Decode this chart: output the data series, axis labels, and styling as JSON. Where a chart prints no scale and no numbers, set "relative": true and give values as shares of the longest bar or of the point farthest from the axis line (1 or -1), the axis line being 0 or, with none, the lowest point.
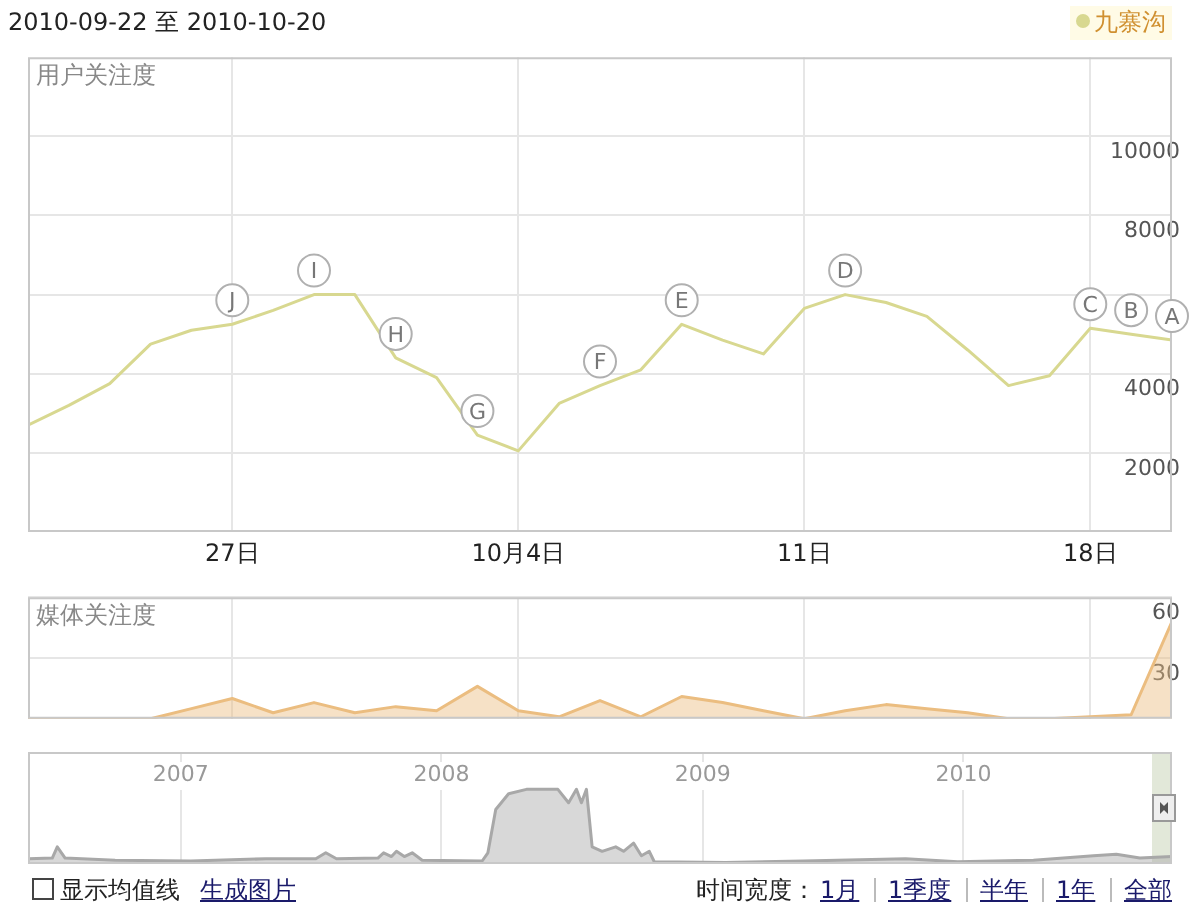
{
  "chart_data": [
    {
      "type": "line",
      "title": "2010-09-22 至 2010-10-20",
      "ylabel": "用户关注度",
      "legend": "top right",
      "marker": "none",
      "grid": true,
      "x": [
        "2010-09-22",
        "2010-09-23",
        "2010-09-24",
        "2010-09-25",
        "2010-09-26",
        "2010-09-27",
        "2010-09-28",
        "2010-09-29",
        "2010-09-30",
        "2010-10-01",
        "2010-10-02",
        "2010-10-03",
        "2010-10-04",
        "2010-10-05",
        "2010-10-06",
        "2010-10-07",
        "2010-10-08",
        "2010-10-09",
        "2010-10-10",
        "2010-10-11",
        "2010-10-12",
        "2010-10-13",
        "2010-10-14",
        "2010-10-15",
        "2010-10-16",
        "2010-10-17",
        "2010-10-18",
        "2010-10-19",
        "2010-10-20"
      ],
      "series": [
        {
          "name": "九寨沟",
          "color": "#d8d890",
          "values": [
            2700,
            3200,
            3750,
            4750,
            5100,
            5250,
            5600,
            6000,
            6000,
            4400,
            3900,
            2450,
            2050,
            3250,
            3700,
            4100,
            5250,
            4850,
            4500,
            5650,
            6000,
            5800,
            5450,
            4600,
            3700,
            3950,
            5150,
            5000,
            4850
          ]
        }
      ],
      "xlim": [
        "2010-09-22",
        "2010-10-20"
      ],
      "xticks": [
        {
          "value": "2010-09-27",
          "label": "27日"
        },
        {
          "value": "2010-10-04",
          "label": "10月4日"
        },
        {
          "value": "2010-10-11",
          "label": "11日"
        },
        {
          "value": "2010-10-18",
          "label": "18日"
        }
      ],
      "ylim": [
        0,
        12000
      ],
      "yticks": [
        2000,
        4000,
        {
          "value": 6000,
          "label": null
        },
        8000,
        10000
      ],
      "annotations": [
        {
          "text": "J",
          "x": "2010-09-27",
          "y": 5250
        },
        {
          "text": "I",
          "x": "2010-09-29",
          "y": 6000
        },
        {
          "text": "H",
          "x": "2010-10-01",
          "y": 4400
        },
        {
          "text": "G",
          "x": "2010-10-03",
          "y": 2450
        },
        {
          "text": "F",
          "x": "2010-10-06",
          "y": 3700
        },
        {
          "text": "E",
          "x": "2010-10-08",
          "y": 5250
        },
        {
          "text": "D",
          "x": "2010-10-12",
          "y": 6000
        },
        {
          "text": "C",
          "x": "2010-10-18",
          "y": 5150
        },
        {
          "text": "B",
          "x": "2010-10-19",
          "y": 5000
        },
        {
          "text": "A",
          "x": "2010-10-20",
          "y": 4850
        }
      ]
    },
    {
      "type": "area",
      "ylabel": "媒体关注度",
      "marker": "none",
      "grid": true,
      "tick_labels": "y",
      "x": [
        "2010-09-22",
        "2010-09-23",
        "2010-09-24",
        "2010-09-25",
        "2010-09-26",
        "2010-09-27",
        "2010-09-28",
        "2010-09-29",
        "2010-09-30",
        "2010-10-01",
        "2010-10-02",
        "2010-10-03",
        "2010-10-04",
        "2010-10-05",
        "2010-10-06",
        "2010-10-07",
        "2010-10-08",
        "2010-10-09",
        "2010-10-10",
        "2010-10-11",
        "2010-10-12",
        "2010-10-13",
        "2010-10-14",
        "2010-10-15",
        "2010-10-16",
        "2010-10-17",
        "2010-10-18",
        "2010-10-19",
        "2010-10-20"
      ],
      "series": [
        {
          "color": "#ebbd80",
          "values": [
            0,
            0,
            0,
            0,
            5,
            10,
            3,
            8,
            3,
            6,
            4,
            16,
            4,
            1,
            9,
            1,
            11,
            8,
            4,
            0,
            4,
            7,
            5,
            3,
            0,
            0,
            1,
            2,
            48
          ]
        }
      ],
      "xlim": [
        "2010-09-22",
        "2010-10-20"
      ],
      "xticks": [
        {
          "value": "2010-09-27",
          "label": null
        },
        {
          "value": "2010-10-04",
          "label": null
        },
        {
          "value": "2010-10-11",
          "label": null
        },
        {
          "value": "2010-10-18",
          "label": null
        }
      ],
      "ylim": [
        0,
        60
      ],
      "yticks": [
        30,
        60
      ]
    },
    {
      "type": "area",
      "relative": true,
      "marker": "none",
      "grid": "x",
      "tick_labels": "x",
      "x": [
        "2006-06-02",
        "2006-07-05",
        "2006-07-12",
        "2006-07-23",
        "2006-10-01",
        "2007-01-15",
        "2007-04-30",
        "2007-07-09",
        "2007-07-23",
        "2007-08-07",
        "2007-10-04",
        "2007-10-12",
        "2007-10-23",
        "2007-10-30",
        "2007-11-10",
        "2007-11-21",
        "2007-12-05",
        "2008-02-27",
        "2008-03-06",
        "2008-03-17",
        "2008-04-04",
        "2008-04-29",
        "2008-06-12",
        "2008-06-27",
        "2008-07-08",
        "2008-07-15",
        "2008-07-22",
        "2008-07-30",
        "2008-08-13",
        "2008-09-01",
        "2008-09-12",
        "2008-09-26",
        "2008-10-07",
        "2008-10-18",
        "2008-10-25",
        "2009-02-02",
        "2009-05-22",
        "2009-10-12",
        "2009-12-24",
        "2010-04-09",
        "2010-07-02",
        "2010-08-03",
        "2010-09-05",
        "2010-10-20"
      ],
      "series": [
        {
          "color": "#a8a8a8",
          "values": [
            0.07,
            0.08,
            0.23,
            0.08,
            0.05,
            0.04,
            0.07,
            0.07,
            0.15,
            0.07,
            0.08,
            0.15,
            0.1,
            0.17,
            0.1,
            0.15,
            0.05,
            0.04,
            0.15,
            0.73,
            0.94,
            1,
            1,
            0.82,
            1,
            0.82,
            1,
            0.23,
            0.17,
            0.23,
            0.17,
            0.28,
            0.11,
            0.17,
            0.03,
            0.02,
            0.04,
            0.07,
            0.03,
            0.05,
            0.11,
            0.13,
            0.08,
            0.1
          ]
        }
      ],
      "xlim": [
        "2006-06-01",
        "2010-10-20"
      ],
      "xticks": [
        {
          "value": "2007-01-01",
          "label": "2007"
        },
        {
          "value": "2008-01-01",
          "label": "2008"
        },
        {
          "value": "2009-01-01",
          "label": "2009"
        },
        {
          "value": "2010-01-01",
          "label": "2010"
        }
      ],
      "bands": [
        {
          "axis": "x",
          "from": "2010-09-22",
          "to": "2010-10-20",
          "color": "#cfd8c0"
        }
      ]
    },
    {
      "type": "other",
      "annotations": [
        "显示均值线",
        "生成图片",
        "时间宽度：",
        "1月",
        "1季度",
        "半年",
        "1年",
        "全部"
      ]
    }
  ]
}
